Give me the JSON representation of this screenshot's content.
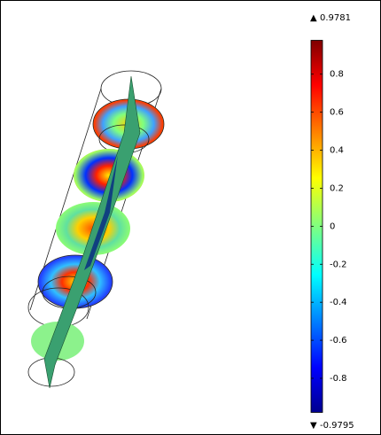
{
  "chart_data": {
    "type": "colorbar",
    "max": 0.9781,
    "min": -0.9795,
    "ticks": [
      0.8,
      0.6,
      0.4,
      0.2,
      0,
      -0.2,
      -0.4,
      -0.6,
      -0.8
    ]
  }
}
